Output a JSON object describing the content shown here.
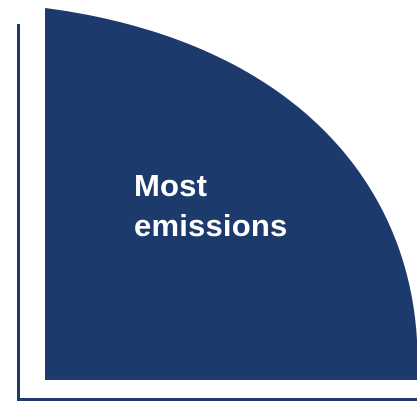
{
  "diagram": {
    "label_lines": [
      "Most",
      "emissions"
    ],
    "colors": {
      "fill": "#1c3a6b",
      "axis": "#1c3a6b",
      "text": "#ffffff",
      "background": "#ffffff"
    }
  }
}
